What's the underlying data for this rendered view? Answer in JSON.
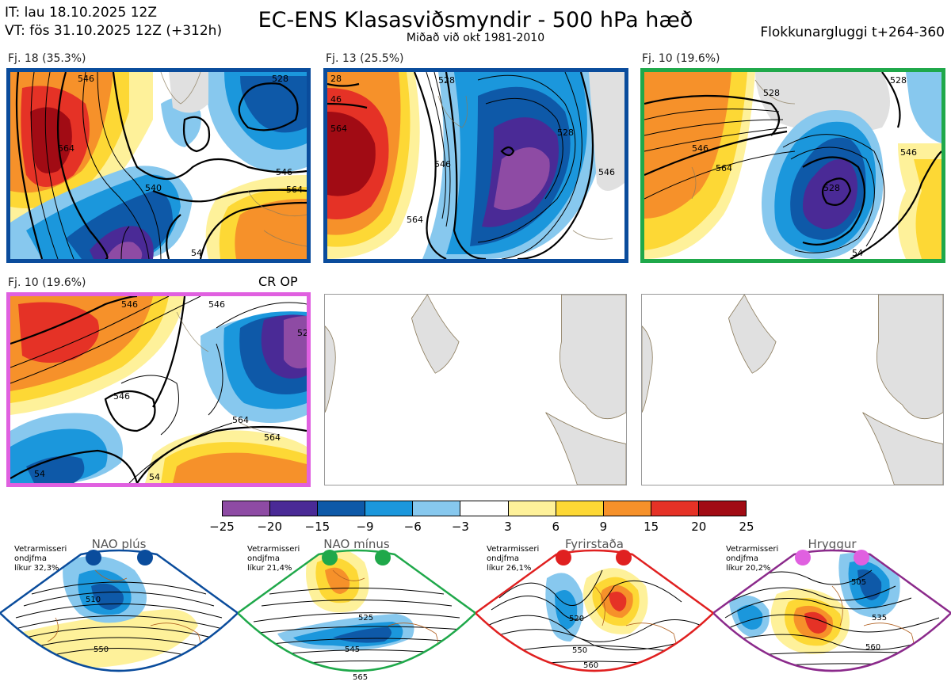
{
  "header": {
    "it_line": "IT: lau 18.10.2025 12Z",
    "vt_line": "VT: fös 31.10.2025 12Z  (+312h)",
    "title": "EC-ENS Klasasviðsmyndir - 500 hPa hæð",
    "subtitle": "Miðað við okt 1981-2010",
    "window": "Flokkunargluggi t+264-360"
  },
  "panels": [
    {
      "label": "Fj. 18 (35.3%)",
      "frame_color": "#0a4c9c",
      "contours": [
        "546",
        "564",
        "540",
        "528",
        "546",
        "564",
        "54"
      ]
    },
    {
      "label": "Fj. 13 (25.5%)",
      "frame_color": "#0a4c9c",
      "contours": [
        "28",
        "46",
        "564",
        "546",
        "528",
        "528",
        "564",
        "546"
      ]
    },
    {
      "label": "Fj. 10 (19.6%)",
      "frame_color": "#1fa84a",
      "contours": [
        "528",
        "528",
        "546",
        "564",
        "546",
        "528",
        "54"
      ]
    },
    {
      "label": "Fj. 10 (19.6%)",
      "frame_color": "#e060e0",
      "contours": [
        "546",
        "546",
        "52",
        "546",
        "564",
        "564",
        "54",
        "54"
      ],
      "tag": "CR OP"
    }
  ],
  "colorbar": {
    "colors": [
      "#8e4ba4",
      "#4a2a96",
      "#0e59a8",
      "#1b97dc",
      "#87c8ee",
      "#ffffff",
      "#fef19a",
      "#fdd835",
      "#f6912a",
      "#e53226",
      "#a10b14"
    ],
    "ticks": [
      "−25",
      "−20",
      "−15",
      "−9",
      "−6",
      "−3",
      "3",
      "6",
      "9",
      "15",
      "20",
      "25"
    ]
  },
  "regimes": [
    {
      "name": "NAO plús",
      "note": [
        "Vetrarmisseri",
        "ondjfma",
        "líkur 32,3%"
      ],
      "color": "#0a4c9c",
      "contours": [
        "510",
        "550"
      ]
    },
    {
      "name": "NAO mínus",
      "note": [
        "Vetrarmisseri",
        "ondjfma",
        "líkur 21,4%"
      ],
      "color": "#1fa84a",
      "contours": [
        "525",
        "545",
        "565"
      ]
    },
    {
      "name": "Fyrirstaða",
      "note": [
        "Vetrarmisseri",
        "ondjfma",
        "líkur 26,1%"
      ],
      "color": "#e02020",
      "contours": [
        "520",
        "550",
        "560"
      ]
    },
    {
      "name": "Hryggur",
      "note": [
        "Vetrarmisseri",
        "ondjfma",
        "líkur 20,2%"
      ],
      "color": "#e060e0",
      "contours": [
        "505",
        "535",
        "560"
      ]
    }
  ]
}
